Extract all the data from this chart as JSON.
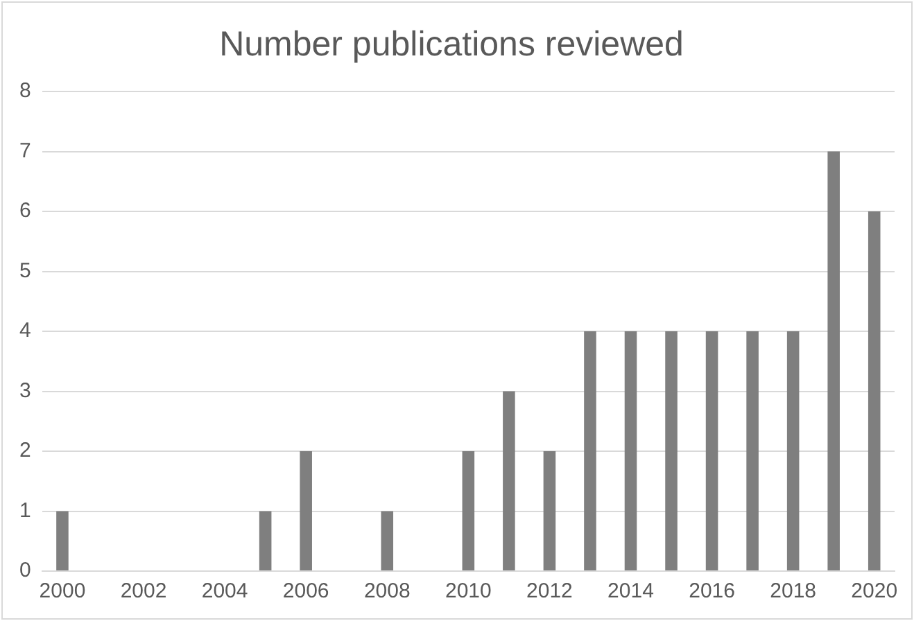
{
  "chart_data": {
    "type": "bar",
    "title": "Number publications reviewed",
    "categories": [
      "2000",
      null,
      "2002",
      null,
      "2004",
      null,
      "2006",
      null,
      "2008",
      null,
      "2010",
      null,
      "2012",
      null,
      "2014",
      null,
      "2016",
      null,
      "2018",
      null,
      "2020"
    ],
    "values": [
      1,
      0,
      0,
      0,
      0,
      1,
      2,
      0,
      1,
      0,
      2,
      3,
      2,
      4,
      4,
      4,
      4,
      4,
      4,
      7,
      6
    ],
    "color": "#7f7f7f",
    "ylim": [
      0,
      8
    ],
    "yticks": [
      0,
      1,
      2,
      3,
      4,
      5,
      6,
      7,
      8
    ],
    "grid": "y",
    "legend": false
  }
}
